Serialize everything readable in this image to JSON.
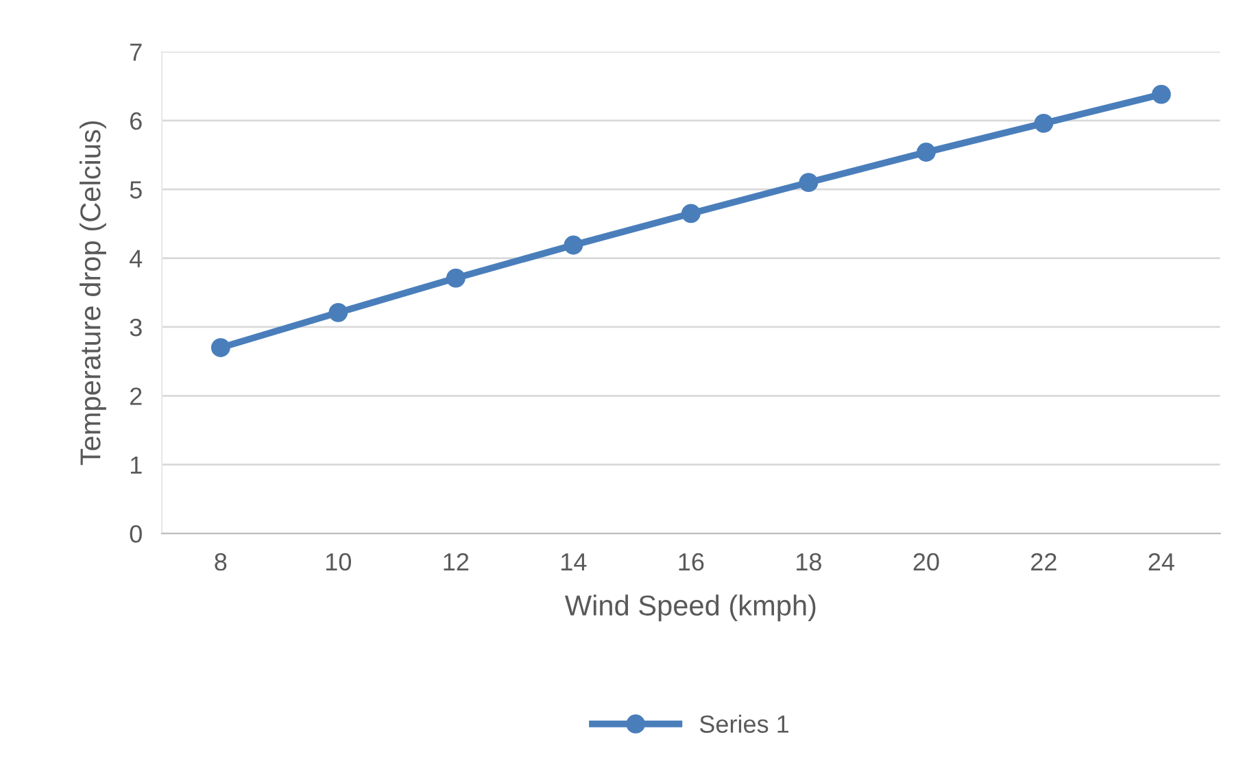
{
  "chart_data": {
    "type": "line",
    "xlabel": "Wind Speed (kmph)",
    "ylabel": "Temperature drop (Celcius)",
    "categories": [
      "8",
      "10",
      "12",
      "14",
      "16",
      "18",
      "20",
      "22",
      "24"
    ],
    "series": [
      {
        "name": "Series 1",
        "color": "#4a7ebb",
        "values": [
          2.7,
          3.21,
          3.71,
          4.19,
          4.65,
          5.1,
          5.54,
          5.96,
          6.38
        ]
      }
    ],
    "ylim": [
      0,
      7
    ],
    "yticks": [
      0,
      1,
      2,
      3,
      4,
      5,
      6,
      7
    ],
    "grid": "y",
    "legend": "bottom",
    "marker": "circle",
    "line_style": "solid"
  }
}
